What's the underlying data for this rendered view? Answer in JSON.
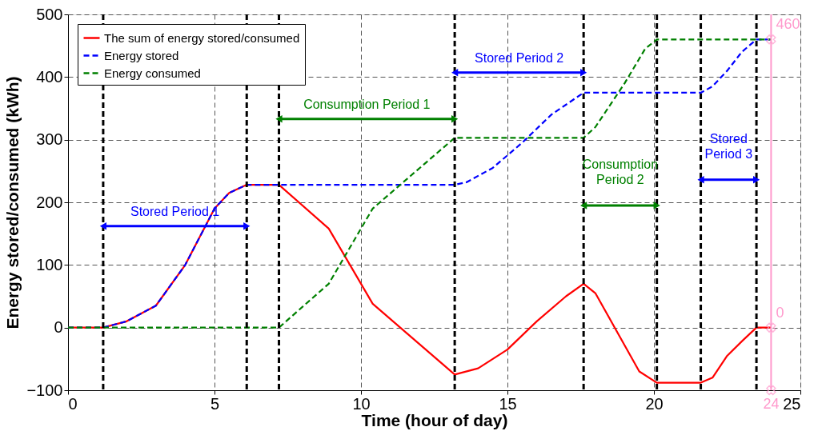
{
  "chart_data": {
    "type": "line",
    "xlabel": "Time (hour of day)",
    "ylabel": "Energy stored/consumed (kWh)",
    "xlim": [
      0,
      25
    ],
    "ylim": [
      -100,
      500
    ],
    "xticks": [
      0,
      5,
      10,
      15,
      20,
      25
    ],
    "yticks": [
      -100,
      0,
      100,
      200,
      300,
      400,
      500
    ],
    "grid": true,
    "legend": "top left",
    "series": [
      {
        "name": "The sum of energy stored/consumed",
        "color": "#ff0000",
        "line_style": "solid",
        "x": [
          0,
          1.2,
          2,
          3,
          4,
          5,
          5.5,
          6.1,
          7.2,
          8.9,
          10.4,
          13.2,
          14,
          15,
          16,
          17,
          17.6,
          18,
          19.5,
          20.1,
          21.6,
          22,
          22.5,
          23,
          23.5,
          24
        ],
        "values": [
          0,
          0,
          10,
          35,
          100,
          190,
          215,
          228,
          228,
          158,
          38,
          -75,
          -65,
          -35,
          10,
          50,
          70,
          55,
          -70,
          -88,
          -88,
          -80,
          -45,
          -22,
          0,
          0
        ]
      },
      {
        "name": "Energy stored",
        "color": "#0000ff",
        "line_style": "dashed",
        "x": [
          0,
          1.2,
          2,
          3,
          4,
          5,
          5.5,
          6.1,
          13.2,
          13.6,
          14.5,
          15.5,
          16.5,
          17.6,
          21.6,
          22,
          22.5,
          23,
          23.5,
          24
        ],
        "values": [
          0,
          0,
          10,
          35,
          100,
          190,
          215,
          228,
          228,
          232,
          255,
          295,
          340,
          375,
          375,
          385,
          410,
          440,
          460,
          460
        ]
      },
      {
        "name": "Energy consumed",
        "color": "#008000",
        "line_style": "dashed",
        "x": [
          0,
          7.2,
          8.9,
          10.4,
          13.2,
          17.6,
          18,
          19,
          19.7,
          20.1,
          24
        ],
        "values": [
          0,
          0,
          70,
          190,
          303,
          303,
          320,
          390,
          445,
          460,
          460
        ]
      }
    ],
    "ref_lines": [
      {
        "axis": "x",
        "value": 1.2,
        "color": "#000000",
        "line_style": "dashed"
      },
      {
        "axis": "x",
        "value": 6.1,
        "color": "#000000",
        "line_style": "dashed"
      },
      {
        "axis": "x",
        "value": 7.2,
        "color": "#000000",
        "line_style": "dashed"
      },
      {
        "axis": "x",
        "value": 13.2,
        "color": "#000000",
        "line_style": "dashed"
      },
      {
        "axis": "x",
        "value": 17.6,
        "color": "#000000",
        "line_style": "dashed"
      },
      {
        "axis": "x",
        "value": 20.1,
        "color": "#000000",
        "line_style": "dashed"
      },
      {
        "axis": "x",
        "value": 21.6,
        "color": "#000000",
        "line_style": "dashed"
      },
      {
        "axis": "x",
        "value": 23.5,
        "color": "#000000",
        "line_style": "dashed"
      },
      {
        "axis": "x",
        "value": 24,
        "color": "#ff99cc",
        "line_style": "solid"
      }
    ],
    "annotations": [
      {
        "text": "Stored Period 1",
        "x": 6.1,
        "y": 162
      },
      {
        "text": "Consumption Period 1",
        "x": 13.2,
        "y": 333
      },
      {
        "text": "Stored Period 2",
        "x": 17.6,
        "y": 407
      },
      {
        "text": "Consumption\nPeriod 2",
        "x": 20.1,
        "y": 195
      },
      {
        "text": "Stored\nPeriod 3",
        "x": 23.5,
        "y": 236
      },
      {
        "text": "460",
        "x": 24,
        "y": 460
      },
      {
        "text": "0",
        "x": 24,
        "y": 0
      },
      {
        "text": "24",
        "x": 24,
        "y": -100
      }
    ]
  }
}
